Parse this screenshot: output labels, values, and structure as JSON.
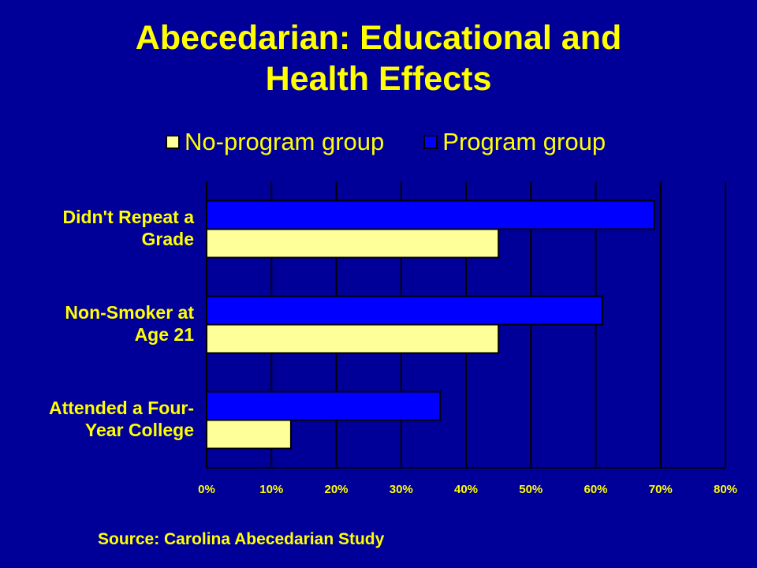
{
  "title_lines": [
    "Abecedarian: Educational and",
    "Health Effects"
  ],
  "source": "Source: Carolina Abecedarian Study",
  "colors": {
    "background": "#000099",
    "text": "#ffff00",
    "no_program": "#ffff99",
    "program": "#0000ff",
    "gridline": "#000000"
  },
  "chart_data": {
    "type": "bar",
    "orientation": "horizontal",
    "categories": [
      "Didn't Repeat a Grade",
      "Non-Smoker at Age 21",
      "Attended a Four-Year College"
    ],
    "category_label_lines": [
      [
        "Didn't Repeat a",
        "Grade"
      ],
      [
        "Non-Smoker at",
        "Age 21"
      ],
      [
        "Attended a Four-",
        "Year College"
      ]
    ],
    "series": [
      {
        "name": "No-program group",
        "values": [
          45,
          45,
          13
        ]
      },
      {
        "name": "Program group",
        "values": [
          69,
          61,
          36
        ]
      }
    ],
    "xlim": [
      0,
      80
    ],
    "ticks": [
      0,
      10,
      20,
      30,
      40,
      50,
      60,
      70,
      80
    ],
    "tick_labels": [
      "0%",
      "10%",
      "20%",
      "30%",
      "40%",
      "50%",
      "60%",
      "70%",
      "80%"
    ],
    "grid": true,
    "legend": "top"
  }
}
